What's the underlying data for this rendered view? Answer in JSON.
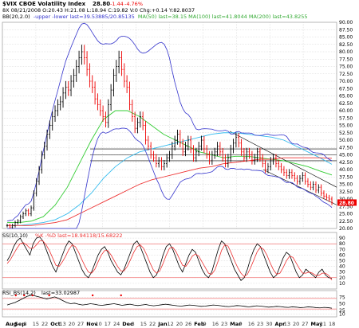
{
  "header": {
    "symbol": "$VIX CBOE Volatility Index",
    "last": "28.80",
    "change": "-1.44",
    "change_pct": "-4.76%",
    "ohlc_line": "8X 08/21/2008 O:20.43 H:21.08 L:18.94 C:19.82 V:0 Chg:+0.14 Y:82.8037",
    "bb_line_prefix": "BB(20,2.0)",
    "bb_line_rest": "-upper -lower last=39.53885/20.85135",
    "ma_line": "MA(50)  last=38.15  MA(100)  last=41.8044  MA(200)  last=43.8255"
  },
  "colors": {
    "up_bar": "#000000",
    "down_bar": "#ee0000",
    "bb": "#3333cc",
    "ma50": "#33cc33",
    "ma100": "#33bbee",
    "ma200": "#ee3333",
    "last_label_bg": "#ee0000",
    "ss_line": "#000000",
    "ss_signal": "#ee3333",
    "rsi_line": "#000000",
    "grid": "#bbbbbb",
    "border": "#888888"
  },
  "chart_data": [
    {
      "type": "candlestick",
      "title": "$VIX CBOE Volatility Index",
      "ylim": [
        20,
        90
      ],
      "yticks": [
        20,
        22.5,
        25,
        27.5,
        30,
        32.5,
        35,
        37.5,
        40,
        42.5,
        45,
        47.5,
        50,
        52.5,
        55,
        57.5,
        60,
        62.5,
        65,
        67.5,
        70,
        72.5,
        75,
        77.5,
        80,
        82.5,
        85,
        87.5,
        90
      ],
      "ytick_labels": [
        "20.00",
        "22.50",
        "25.00",
        "27.50",
        "30.00",
        "32.50",
        "35.00",
        "37.50",
        "40.00",
        "42.50",
        "45.00",
        "47.50",
        "50.00",
        "52.50",
        "55.00",
        "57.50",
        "60.00",
        "62.50",
        "65.00",
        "67.50",
        "70.00",
        "72.50",
        "75.00",
        "77.50",
        "80.00",
        "82.50",
        "85.00",
        "87.50",
        "90.00"
      ],
      "last_value": "28.80",
      "grid": true,
      "x_labels": [
        "Aug",
        "Sep",
        "8",
        "15",
        "22",
        "Oct",
        "13",
        "20",
        "27",
        "Nov",
        "10",
        "17",
        "24",
        "Dec",
        "8",
        "15",
        "22",
        "Jan",
        "12",
        "20",
        "26",
        "Feb",
        "9",
        "16",
        "23",
        "Mar",
        "9",
        "16",
        "23",
        "30",
        "Apr",
        "13",
        "20",
        "27",
        "May",
        "11",
        "18"
      ],
      "x_label_month": [
        "Aug",
        "Sep",
        "Oct",
        "Nov",
        "Dec",
        "Jan",
        "Feb",
        "Mar",
        "Apr",
        "May"
      ],
      "horizontal_levels": [
        47,
        45,
        43
      ],
      "trend_channel": {
        "upper": [
          [
            0.68,
            53
          ],
          [
            1.0,
            34
          ]
        ],
        "lower": [
          [
            0.78,
            40
          ],
          [
            1.0,
            28
          ]
        ]
      },
      "series": [
        {
          "name": "MA(50)",
          "values": [
            22,
            22,
            22.5,
            24,
            28,
            34,
            42,
            50,
            57,
            60,
            60,
            58,
            55,
            52,
            50,
            48,
            46,
            45,
            44,
            44.5,
            44.5,
            44,
            43.5,
            43,
            42,
            41,
            39.5,
            38.15
          ]
        },
        {
          "name": "MA(100)",
          "values": [
            21,
            21,
            21.5,
            22,
            23,
            25,
            28,
            32,
            37,
            41,
            44,
            46,
            47,
            48,
            49,
            50,
            51,
            52,
            52.5,
            52.5,
            52,
            51.5,
            51,
            50,
            48,
            46,
            44,
            41.8
          ]
        },
        {
          "name": "MA(200)",
          "values": [
            21,
            21,
            21,
            21.5,
            22,
            23,
            25,
            27,
            29,
            31,
            33,
            35,
            36.5,
            37.5,
            38.5,
            39.5,
            40.5,
            41,
            42,
            42.5,
            43,
            43.5,
            43.5,
            44,
            44,
            44,
            44,
            43.83
          ]
        }
      ],
      "closes": [
        21,
        20.5,
        21,
        22,
        22.5,
        24,
        25,
        26,
        25,
        27,
        32,
        36,
        40,
        45,
        48,
        52,
        55,
        58,
        60,
        62,
        63,
        66,
        68,
        67,
        70,
        72,
        75,
        78,
        80,
        78,
        74,
        70,
        68,
        64,
        62,
        60,
        58,
        56,
        62,
        67,
        72,
        75,
        78,
        74,
        70,
        68,
        62,
        58,
        54,
        56,
        58,
        55,
        50,
        48,
        45,
        44,
        42,
        43,
        41,
        42,
        44,
        45,
        48,
        50,
        52,
        49,
        46,
        48,
        50,
        47,
        44,
        46,
        48,
        50,
        47,
        45,
        43,
        45,
        46,
        48,
        46,
        44,
        42,
        44,
        47,
        49,
        51,
        49,
        46,
        44,
        46,
        45,
        43,
        44,
        46,
        44,
        42,
        40,
        41,
        43,
        44,
        42,
        41,
        40,
        39,
        38,
        39,
        38,
        37,
        36,
        37,
        38,
        36,
        35,
        34,
        35,
        33,
        34,
        32,
        31,
        30.5,
        30,
        28.8
      ]
    },
    {
      "type": "line",
      "title": "SS(10,10)",
      "legend_text": "%K -%D last=18.94118/15.68222",
      "ylim": [
        0,
        100
      ],
      "yticks": [
        10,
        20,
        30,
        40,
        50,
        60,
        70,
        80,
        90
      ],
      "ytick_labels": [
        "10",
        "20",
        "30",
        "40",
        "50",
        "60",
        "70",
        "80",
        "90"
      ],
      "ref_lines": [
        20,
        80
      ],
      "series": [
        {
          "name": "%K",
          "values": [
            50,
            60,
            75,
            85,
            90,
            80,
            70,
            60,
            80,
            90,
            92,
            85,
            70,
            55,
            40,
            30,
            45,
            60,
            75,
            85,
            80,
            65,
            50,
            35,
            25,
            20,
            30,
            45,
            60,
            70,
            75,
            65,
            50,
            40,
            30,
            25,
            35,
            50,
            65,
            80,
            85,
            75,
            60,
            45,
            30,
            20,
            25,
            40,
            60,
            75,
            80,
            70,
            55,
            40,
            30,
            45,
            60,
            70,
            65,
            50,
            35,
            25,
            20,
            30,
            50,
            70,
            85,
            80,
            65,
            50,
            35,
            25,
            15,
            20,
            35,
            55,
            70,
            80,
            75,
            60,
            45,
            30,
            20,
            25,
            40,
            55,
            65,
            60,
            45,
            30,
            20,
            25,
            35,
            30,
            25,
            20,
            30,
            35,
            25,
            20,
            19
          ]
        },
        {
          "name": "%D",
          "values": [
            45,
            52,
            62,
            72,
            80,
            82,
            78,
            72,
            72,
            78,
            85,
            85,
            78,
            68,
            55,
            42,
            40,
            48,
            58,
            70,
            78,
            75,
            65,
            52,
            40,
            30,
            28,
            35,
            48,
            60,
            68,
            68,
            60,
            50,
            40,
            32,
            32,
            40,
            52,
            65,
            75,
            78,
            72,
            60,
            46,
            34,
            28,
            32,
            45,
            60,
            72,
            74,
            66,
            54,
            42,
            40,
            48,
            58,
            62,
            58,
            48,
            38,
            28,
            26,
            34,
            50,
            68,
            78,
            76,
            64,
            50,
            38,
            28,
            22,
            26,
            38,
            52,
            66,
            74,
            70,
            60,
            46,
            34,
            26,
            28,
            38,
            50,
            58,
            56,
            46,
            36,
            28,
            28,
            30,
            28,
            24,
            24,
            28,
            28,
            24,
            15.7
          ]
        }
      ]
    },
    {
      "type": "line",
      "title": "RSI_BS(14,2)",
      "legend_text": "last=33.02987",
      "ylim": [
        0,
        100
      ],
      "yticks": [
        10,
        25,
        50,
        75
      ],
      "ytick_labels": [
        "10",
        "25",
        "50",
        "75"
      ],
      "ref_lines": [
        30,
        70
      ],
      "series": [
        {
          "name": "RSI_BS(14,2)",
          "values": [
            45,
            50,
            55,
            62,
            70,
            78,
            82,
            80,
            76,
            72,
            68,
            72,
            76,
            70,
            62,
            55,
            50,
            52,
            48,
            45,
            47,
            50,
            48,
            45,
            44,
            46,
            48,
            50,
            47,
            44,
            46,
            48,
            45,
            43,
            45,
            47,
            44,
            42,
            44,
            46,
            48,
            46,
            44,
            42,
            41,
            43,
            45,
            44,
            42,
            40,
            41,
            43,
            45,
            44,
            42,
            40,
            39,
            41,
            43,
            42,
            40,
            38,
            40,
            42,
            41,
            39,
            37,
            38,
            40,
            39,
            37,
            36,
            38,
            37,
            35,
            36,
            38,
            37,
            35,
            34,
            36,
            35,
            33
          ]
        }
      ],
      "markers_x": [
        0.04,
        0.065,
        0.09,
        0.14,
        0.27,
        0.355
      ]
    }
  ]
}
